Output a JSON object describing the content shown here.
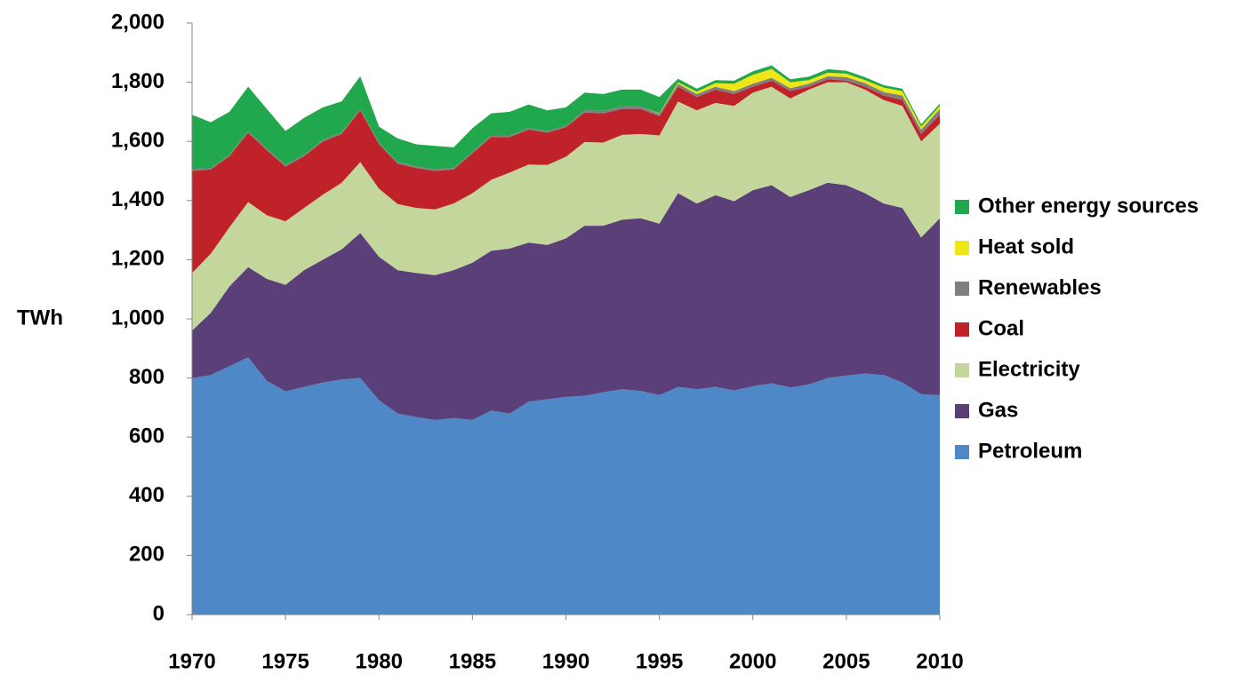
{
  "chart_data": {
    "type": "stacked-area",
    "y_label": "TWh",
    "x": [
      1970,
      1971,
      1972,
      1973,
      1974,
      1975,
      1976,
      1977,
      1978,
      1979,
      1980,
      1981,
      1982,
      1983,
      1984,
      1985,
      1986,
      1987,
      1988,
      1989,
      1990,
      1991,
      1992,
      1993,
      1994,
      1995,
      1996,
      1997,
      1998,
      1999,
      2000,
      2001,
      2002,
      2003,
      2004,
      2005,
      2006,
      2007,
      2008,
      2009,
      2010
    ],
    "xlim": [
      1970,
      2010
    ],
    "xticks": [
      1970,
      1975,
      1980,
      1985,
      1990,
      1995,
      2000,
      2005,
      2010
    ],
    "ylim": [
      0,
      2000
    ],
    "yticks": [
      0,
      200,
      400,
      600,
      800,
      {
        "value": 1000,
        "label": "1,000"
      },
      {
        "value": 1200,
        "label": "1,200"
      },
      {
        "value": 1400,
        "label": "1,400"
      },
      {
        "value": 1600,
        "label": "1,600"
      },
      {
        "value": 1800,
        "label": "1,800"
      },
      {
        "value": 2000,
        "label": "2,000"
      }
    ],
    "legend": "right",
    "series": [
      {
        "name": "Petroleum",
        "color": "#4f88c6",
        "values": [
          800,
          810,
          840,
          870,
          790,
          755,
          770,
          785,
          795,
          800,
          725,
          680,
          668,
          658,
          665,
          658,
          690,
          680,
          720,
          728,
          736,
          740,
          752,
          762,
          756,
          742,
          770,
          762,
          770,
          758,
          772,
          782,
          768,
          778,
          800,
          808,
          815,
          810,
          785,
          745,
          742
        ]
      },
      {
        "name": "Gas",
        "color": "#5a3f79",
        "values": [
          160,
          210,
          270,
          305,
          345,
          360,
          395,
          415,
          440,
          490,
          485,
          485,
          487,
          490,
          500,
          532,
          540,
          558,
          538,
          522,
          536,
          575,
          563,
          573,
          584,
          580,
          655,
          628,
          648,
          640,
          663,
          670,
          644,
          657,
          660,
          644,
          610,
          580,
          590,
          530,
          598
        ]
      },
      {
        "name": "Electricity",
        "color": "#c3d69b",
        "values": [
          195,
          200,
          200,
          220,
          215,
          215,
          210,
          220,
          225,
          240,
          230,
          223,
          220,
          222,
          225,
          235,
          240,
          257,
          264,
          270,
          276,
          283,
          281,
          287,
          285,
          298,
          310,
          315,
          312,
          322,
          330,
          333,
          333,
          340,
          340,
          348,
          350,
          350,
          345,
          325,
          320
        ]
      },
      {
        "name": "Coal",
        "color": "#c0222a",
        "values": [
          345,
          285,
          240,
          235,
          220,
          185,
          175,
          180,
          165,
          175,
          150,
          137,
          135,
          130,
          115,
          135,
          145,
          120,
          118,
          110,
          100,
          100,
          99,
          88,
          85,
          65,
          50,
          45,
          45,
          40,
          20,
          20,
          25,
          10,
          10,
          5,
          10,
          15,
          20,
          25,
          30
        ]
      },
      {
        "name": "Renewables",
        "color": "#7f7f7f",
        "values": [
          5,
          5,
          5,
          5,
          5,
          5,
          5,
          5,
          5,
          5,
          5,
          5,
          5,
          5,
          5,
          5,
          5,
          5,
          5,
          5,
          5,
          8,
          8,
          8,
          8,
          8,
          10,
          10,
          10,
          10,
          10,
          10,
          10,
          10,
          10,
          12,
          12,
          12,
          15,
          15,
          20
        ]
      },
      {
        "name": "Heat sold",
        "color": "#f0e515",
        "values": [
          0,
          0,
          0,
          0,
          0,
          0,
          0,
          0,
          0,
          0,
          0,
          0,
          0,
          0,
          0,
          0,
          0,
          0,
          0,
          0,
          0,
          0,
          0,
          0,
          0,
          2,
          5,
          8,
          12,
          25,
          30,
          30,
          20,
          12,
          12,
          12,
          10,
          15,
          15,
          10,
          10
        ]
      },
      {
        "name": "Other energy sources",
        "color": "#22a84c",
        "values": [
          185,
          155,
          145,
          150,
          135,
          115,
          125,
          110,
          105,
          110,
          55,
          80,
          75,
          80,
          70,
          80,
          75,
          80,
          80,
          70,
          62,
          59,
          57,
          57,
          57,
          55,
          12,
          10,
          10,
          10,
          12,
          12,
          10,
          12,
          12,
          10,
          10,
          8,
          8,
          8,
          8
        ]
      }
    ]
  }
}
